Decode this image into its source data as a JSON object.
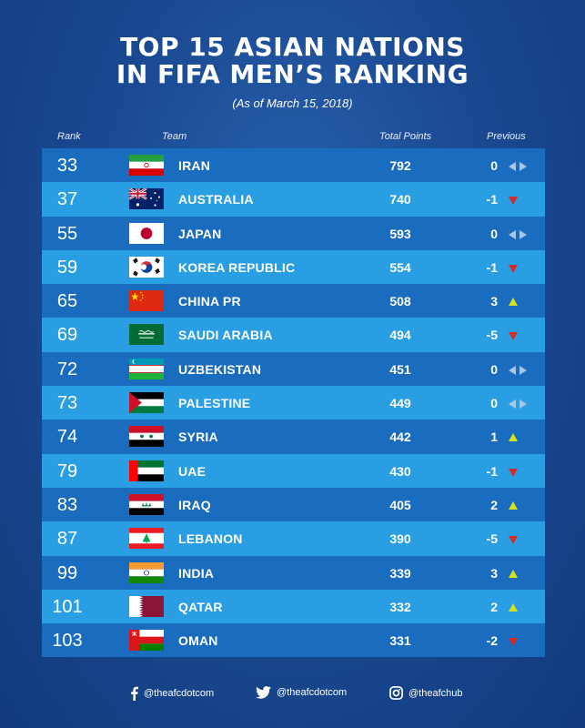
{
  "header": {
    "title_line1": "TOP 15 ASIAN NATIONS",
    "title_line2": "IN FIFA MEN’S  RANKING",
    "subtitle": "(As of March 15, 2018)"
  },
  "columns": {
    "rank": "Rank",
    "team": "Team",
    "points": "Total Points",
    "previous": "Previous"
  },
  "rows": [
    {
      "rank": "33",
      "team": "IRAN",
      "points": "792",
      "previous": "0",
      "trend": "same",
      "flag": "iran"
    },
    {
      "rank": "37",
      "team": "AUSTRALIA",
      "points": "740",
      "previous": "-1",
      "trend": "down",
      "flag": "australia"
    },
    {
      "rank": "55",
      "team": "JAPAN",
      "points": "593",
      "previous": "0",
      "trend": "same",
      "flag": "japan"
    },
    {
      "rank": "59",
      "team": "KOREA REPUBLIC",
      "points": "554",
      "previous": "-1",
      "trend": "down",
      "flag": "korea"
    },
    {
      "rank": "65",
      "team": "CHINA PR",
      "points": "508",
      "previous": "3",
      "trend": "up",
      "flag": "china"
    },
    {
      "rank": "69",
      "team": "SAUDI ARABIA",
      "points": "494",
      "previous": "-5",
      "trend": "down",
      "flag": "saudi"
    },
    {
      "rank": "72",
      "team": "UZBEKISTAN",
      "points": "451",
      "previous": "0",
      "trend": "same",
      "flag": "uzbekistan"
    },
    {
      "rank": "73",
      "team": "PALESTINE",
      "points": "449",
      "previous": "0",
      "trend": "same",
      "flag": "palestine"
    },
    {
      "rank": "74",
      "team": "SYRIA",
      "points": "442",
      "previous": "1",
      "trend": "up",
      "flag": "syria"
    },
    {
      "rank": "79",
      "team": "UAE",
      "points": "430",
      "previous": "-1",
      "trend": "down",
      "flag": "uae"
    },
    {
      "rank": "83",
      "team": "IRAQ",
      "points": "405",
      "previous": "2",
      "trend": "up",
      "flag": "iraq"
    },
    {
      "rank": "87",
      "team": "LEBANON",
      "points": "390",
      "previous": "-5",
      "trend": "down",
      "flag": "lebanon"
    },
    {
      "rank": "99",
      "team": "INDIA",
      "points": "339",
      "previous": "3",
      "trend": "up",
      "flag": "india"
    },
    {
      "rank": "101",
      "team": "QATAR",
      "points": "332",
      "previous": "2",
      "trend": "up",
      "flag": "qatar"
    },
    {
      "rank": "103",
      "team": "OMAN",
      "points": "331",
      "previous": "-2",
      "trend": "down",
      "flag": "oman"
    }
  ],
  "colors": {
    "row_dark": "#1a6cbf",
    "row_light": "#2a9ee3",
    "up": "#d6e21a",
    "down": "#d42a2a",
    "same": "#a9c6e4"
  },
  "footer": {
    "facebook": {
      "icon": "facebook-icon",
      "handle": "@theafcdotcom"
    },
    "twitter": {
      "icon": "twitter-icon",
      "handle": "@theafcdotcom"
    },
    "instagram": {
      "icon": "instagram-icon",
      "handle": "@theafchub"
    }
  }
}
